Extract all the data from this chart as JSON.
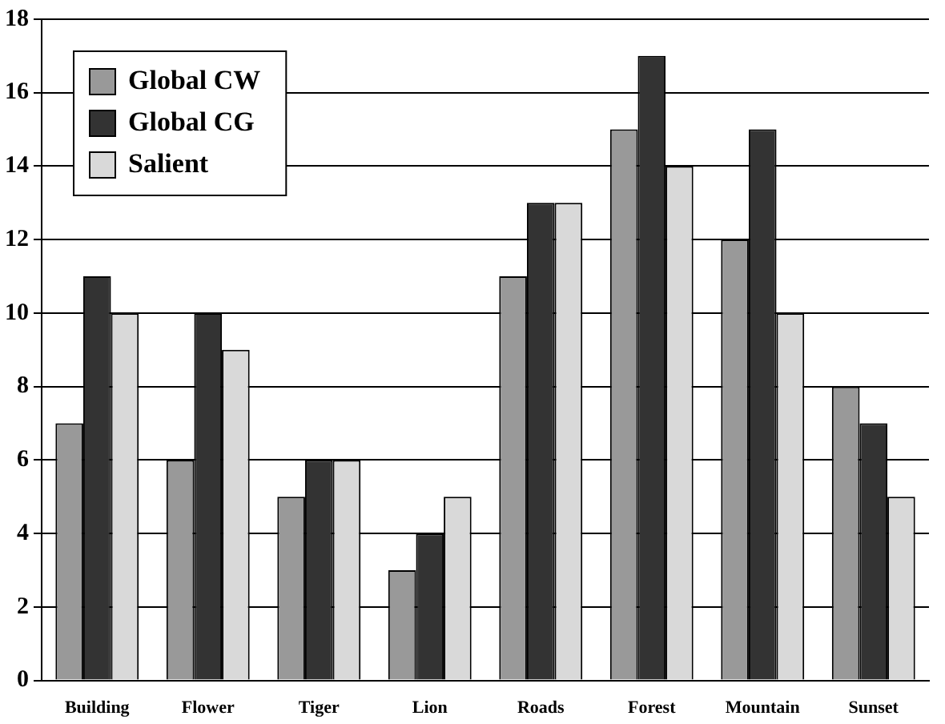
{
  "chart_data": {
    "type": "bar",
    "categories": [
      "Building",
      "Flower",
      "Tiger",
      "Lion",
      "Roads",
      "Forest",
      "Mountain",
      "Sunset"
    ],
    "series": [
      {
        "name": "Global CW",
        "color": "#999999",
        "values": [
          7,
          6,
          5,
          3,
          11,
          15,
          12,
          8
        ]
      },
      {
        "name": "Global CG",
        "color": "#333333",
        "values": [
          11,
          10,
          6,
          4,
          13,
          17,
          15,
          7
        ]
      },
      {
        "name": "Salient",
        "color": "#d9d9d9",
        "values": [
          10,
          9,
          6,
          5,
          13,
          14,
          10,
          5
        ]
      }
    ],
    "ylim": [
      0,
      18
    ],
    "yticks": [
      0,
      2,
      4,
      6,
      8,
      10,
      12,
      14,
      16,
      18
    ],
    "grid": "y",
    "legend": "top left"
  }
}
